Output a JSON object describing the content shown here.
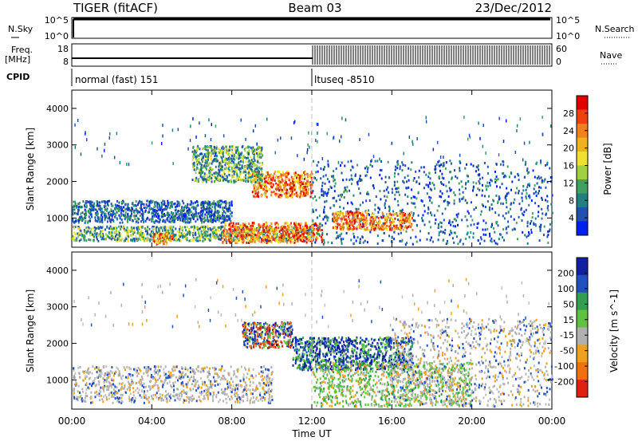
{
  "header": {
    "station": "TIGER (fitACF)",
    "beam": "Beam 03",
    "date": "23/Dec/2012"
  },
  "nsky_panel": {
    "left_label": "N.Sky",
    "right_label": "N.Search",
    "ticks": [
      "10^5",
      "10^0"
    ]
  },
  "freq_panel": {
    "left_label_line1": "Freq.",
    "left_label_line2": "[MHz]",
    "right_label": "Nave",
    "left_ticks": [
      "18",
      "8"
    ],
    "right_ticks": [
      "60",
      "0"
    ]
  },
  "cpid_panel": {
    "label": "CPID",
    "programs": [
      {
        "name": "normal (fast) 151",
        "start_hour": 0
      },
      {
        "name": "ltuseq -8510",
        "start_hour": 12
      }
    ]
  },
  "x_axis": {
    "label": "Time UT",
    "ticks": [
      "00:00",
      "04:00",
      "08:00",
      "12:00",
      "16:00",
      "20:00",
      "00:00"
    ]
  },
  "chart_data": [
    {
      "type": "heatmap",
      "title": "Power",
      "ylabel": "Slant Range [km]",
      "xlabel": "Time UT",
      "xlim": [
        0,
        24
      ],
      "ylim": [
        200,
        4500
      ],
      "y_ticks": [
        1000,
        2000,
        3000,
        4000
      ],
      "colorbar": {
        "label": "Power [dB]",
        "ticks": [
          "28",
          "24",
          "20",
          "16",
          "12",
          "8",
          "4"
        ],
        "colors": [
          "#e00000",
          "#f04010",
          "#f08020",
          "#f0b020",
          "#f0e030",
          "#a0d040",
          "#40a060",
          "#208080",
          "#2050b0",
          "#0020f0"
        ]
      },
      "regions": [
        {
          "t0": 0.0,
          "t1": 8.0,
          "r0": 900,
          "r1": 1500,
          "level": "low"
        },
        {
          "t0": 0.0,
          "t1": 12.0,
          "r0": 400,
          "r1": 800,
          "level": "mid"
        },
        {
          "t0": 4.0,
          "t1": 5.0,
          "r0": 300,
          "r1": 600,
          "level": "high"
        },
        {
          "t0": 7.5,
          "t1": 12.5,
          "r0": 350,
          "r1": 900,
          "level": "high"
        },
        {
          "t0": 9.0,
          "t1": 12.0,
          "r0": 1600,
          "r1": 2300,
          "level": "high"
        },
        {
          "t0": 6.0,
          "t1": 9.5,
          "r0": 2000,
          "r1": 3000,
          "level": "mid"
        },
        {
          "t0": 12.0,
          "t1": 24.0,
          "r0": 300,
          "r1": 2600,
          "level": "low"
        },
        {
          "t0": 13.0,
          "t1": 17.0,
          "r0": 700,
          "r1": 1200,
          "level": "high"
        }
      ]
    },
    {
      "type": "heatmap",
      "title": "Velocity",
      "ylabel": "Slant Range [km]",
      "xlabel": "Time UT",
      "xlim": [
        0,
        24
      ],
      "ylim": [
        200,
        4500
      ],
      "y_ticks": [
        1000,
        2000,
        3000,
        4000
      ],
      "colorbar": {
        "label": "Velocity [m s^-1]",
        "ticks": [
          "200",
          "100",
          "50",
          "15",
          "-15",
          "-50",
          "-100",
          "-200"
        ],
        "colors": [
          "#1020a0",
          "#2050c0",
          "#30a050",
          "#60c040",
          "#b0b0b0",
          "#f0a020",
          "#f07010",
          "#e02010"
        ]
      },
      "regions": [
        {
          "t0": 0.0,
          "t1": 10.0,
          "r0": 400,
          "r1": 1400,
          "level": "ground"
        },
        {
          "t0": 8.5,
          "t1": 11.0,
          "r0": 1900,
          "r1": 2600,
          "level": "mixed"
        },
        {
          "t0": 11.0,
          "t1": 17.0,
          "r0": 1300,
          "r1": 2200,
          "level": "positive"
        },
        {
          "t0": 12.0,
          "t1": 20.0,
          "r0": 300,
          "r1": 1500,
          "level": "green"
        },
        {
          "t0": 16.0,
          "t1": 24.0,
          "r0": 300,
          "r1": 2700,
          "level": "ground"
        }
      ]
    }
  ]
}
